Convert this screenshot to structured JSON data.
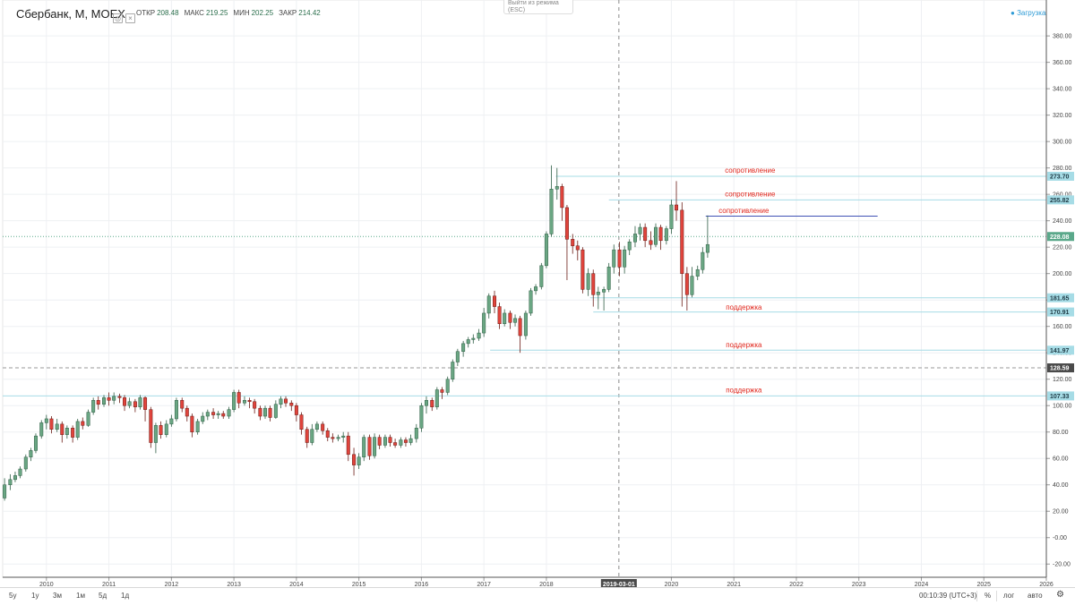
{
  "header": {
    "symbol": "Сбербанк, М, MOEX",
    "ohlc": [
      {
        "key": "ОТКР",
        "value": "208.48"
      },
      {
        "key": "МАКС",
        "value": "219.25"
      },
      {
        "key": "МИН",
        "value": "202.25"
      },
      {
        "key": "ЗАКР",
        "value": "214.42"
      }
    ],
    "esc_hint": "Выйти из режима (ESC)",
    "loading": "Загрузка"
  },
  "chart_data": {
    "type": "candlestick",
    "title": "Сбербанк, М, MOEX",
    "x_axis": {
      "range": [
        2009.3,
        2026.0
      ],
      "ticks": [
        "2010",
        "2011",
        "2012",
        "2013",
        "2014",
        "2015",
        "2016",
        "2017",
        "2018",
        "2019-03-01",
        "2020",
        "2021",
        "2022",
        "2023",
        "2024",
        "2025",
        "2026"
      ],
      "tick_values": [
        2010,
        2011,
        2012,
        2013,
        2014,
        2015,
        2016,
        2017,
        2018,
        2019.16,
        2020,
        2021,
        2022,
        2023,
        2024,
        2025,
        2026
      ],
      "crosshair_label": "2019-03-01",
      "crosshair_value": 2019.16
    },
    "y_axis": {
      "range": [
        -30,
        395
      ],
      "ticks": [
        -20,
        0,
        20,
        40,
        60,
        80,
        100,
        120,
        140,
        160,
        180,
        200,
        220,
        240,
        260,
        280,
        300,
        320,
        340,
        360,
        380
      ],
      "tick_labels": [
        "-20.00",
        "-0.00",
        "20.00",
        "40.00",
        "60.00",
        "80.00",
        "100.00",
        "120.00",
        "140.00",
        "160.00",
        "180.00",
        "200.00",
        "220.00",
        "240.00",
        "260.00",
        "280.00",
        "300.00",
        "320.00",
        "340.00",
        "360.00",
        "380.00"
      ]
    },
    "candles": [
      [
        2009.33,
        30,
        40,
        28,
        45
      ],
      [
        2009.42,
        40,
        44,
        36,
        48
      ],
      [
        2009.5,
        44,
        47,
        42,
        50
      ],
      [
        2009.58,
        47,
        52,
        45,
        54
      ],
      [
        2009.67,
        52,
        61,
        50,
        63
      ],
      [
        2009.75,
        61,
        66,
        58,
        68
      ],
      [
        2009.83,
        66,
        77,
        64,
        79
      ],
      [
        2009.92,
        77,
        87,
        75,
        89
      ],
      [
        2010.0,
        87,
        90,
        82,
        93
      ],
      [
        2010.08,
        90,
        82,
        79,
        92
      ],
      [
        2010.17,
        82,
        86,
        80,
        90
      ],
      [
        2010.25,
        86,
        78,
        72,
        88
      ],
      [
        2010.33,
        78,
        83,
        75,
        85
      ],
      [
        2010.42,
        83,
        76,
        72,
        85
      ],
      [
        2010.5,
        76,
        88,
        74,
        90
      ],
      [
        2010.58,
        88,
        85,
        82,
        91
      ],
      [
        2010.67,
        85,
        95,
        84,
        97
      ],
      [
        2010.75,
        95,
        104,
        93,
        106
      ],
      [
        2010.83,
        104,
        101,
        97,
        107
      ],
      [
        2010.92,
        101,
        106,
        99,
        108
      ],
      [
        2011.0,
        106,
        104,
        100,
        110
      ],
      [
        2011.08,
        104,
        107,
        101,
        110
      ],
      [
        2011.17,
        107,
        106,
        102,
        109
      ],
      [
        2011.25,
        106,
        100,
        96,
        108
      ],
      [
        2011.33,
        100,
        103,
        98,
        106
      ],
      [
        2011.42,
        103,
        99,
        95,
        105
      ],
      [
        2011.5,
        99,
        106,
        97,
        108
      ],
      [
        2011.58,
        106,
        97,
        88,
        107
      ],
      [
        2011.67,
        97,
        72,
        68,
        99
      ],
      [
        2011.75,
        72,
        85,
        64,
        87
      ],
      [
        2011.83,
        85,
        78,
        75,
        88
      ],
      [
        2011.92,
        78,
        86,
        76,
        89
      ],
      [
        2012.0,
        86,
        90,
        84,
        93
      ],
      [
        2012.08,
        90,
        104,
        88,
        106
      ],
      [
        2012.17,
        104,
        98,
        95,
        106
      ],
      [
        2012.25,
        98,
        92,
        88,
        100
      ],
      [
        2012.33,
        92,
        80,
        76,
        94
      ],
      [
        2012.42,
        80,
        88,
        78,
        90
      ],
      [
        2012.5,
        88,
        92,
        86,
        95
      ],
      [
        2012.58,
        92,
        95,
        89,
        97
      ],
      [
        2012.67,
        95,
        93,
        90,
        98
      ],
      [
        2012.75,
        93,
        94,
        90,
        96
      ],
      [
        2012.83,
        94,
        92,
        90,
        96
      ],
      [
        2012.92,
        92,
        97,
        90,
        99
      ],
      [
        2013.0,
        97,
        110,
        95,
        112
      ],
      [
        2013.08,
        110,
        102,
        98,
        112
      ],
      [
        2013.17,
        102,
        104,
        100,
        107
      ],
      [
        2013.25,
        104,
        103,
        98,
        106
      ],
      [
        2013.33,
        103,
        98,
        94,
        105
      ],
      [
        2013.42,
        98,
        92,
        89,
        100
      ],
      [
        2013.5,
        92,
        98,
        90,
        100
      ],
      [
        2013.58,
        98,
        91,
        88,
        100
      ],
      [
        2013.67,
        91,
        101,
        90,
        104
      ],
      [
        2013.75,
        101,
        105,
        98,
        107
      ],
      [
        2013.83,
        105,
        102,
        99,
        107
      ],
      [
        2013.92,
        102,
        100,
        96,
        104
      ],
      [
        2014.0,
        100,
        93,
        88,
        102
      ],
      [
        2014.08,
        93,
        82,
        78,
        95
      ],
      [
        2014.17,
        82,
        72,
        68,
        84
      ],
      [
        2014.25,
        72,
        82,
        70,
        86
      ],
      [
        2014.33,
        82,
        86,
        80,
        88
      ],
      [
        2014.42,
        86,
        81,
        78,
        88
      ],
      [
        2014.5,
        81,
        76,
        73,
        83
      ],
      [
        2014.58,
        76,
        75,
        72,
        79
      ],
      [
        2014.67,
        75,
        76,
        73,
        78
      ],
      [
        2014.75,
        76,
        77,
        72,
        80
      ],
      [
        2014.83,
        77,
        63,
        58,
        80
      ],
      [
        2014.92,
        63,
        55,
        47,
        68
      ],
      [
        2015.0,
        55,
        61,
        52,
        64
      ],
      [
        2015.08,
        61,
        76,
        58,
        78
      ],
      [
        2015.17,
        76,
        62,
        59,
        78
      ],
      [
        2015.25,
        62,
        76,
        60,
        79
      ],
      [
        2015.33,
        76,
        70,
        67,
        78
      ],
      [
        2015.42,
        70,
        76,
        68,
        78
      ],
      [
        2015.5,
        76,
        72,
        69,
        78
      ],
      [
        2015.58,
        72,
        70,
        68,
        75
      ],
      [
        2015.67,
        70,
        74,
        68,
        76
      ],
      [
        2015.75,
        74,
        72,
        69,
        76
      ],
      [
        2015.83,
        72,
        75,
        70,
        78
      ],
      [
        2015.92,
        75,
        83,
        72,
        86
      ],
      [
        2016.0,
        83,
        100,
        80,
        102
      ],
      [
        2016.08,
        100,
        104,
        94,
        107
      ],
      [
        2016.17,
        104,
        99,
        96,
        106
      ],
      [
        2016.25,
        99,
        112,
        97,
        114
      ],
      [
        2016.33,
        112,
        110,
        105,
        114
      ],
      [
        2016.42,
        110,
        120,
        108,
        122
      ],
      [
        2016.5,
        120,
        133,
        118,
        135
      ],
      [
        2016.58,
        133,
        141,
        130,
        143
      ],
      [
        2016.67,
        141,
        147,
        137,
        149
      ],
      [
        2016.75,
        147,
        150,
        144,
        152
      ],
      [
        2016.83,
        150,
        151,
        147,
        154
      ],
      [
        2016.92,
        151,
        155,
        149,
        158
      ],
      [
        2017.0,
        155,
        170,
        152,
        174
      ],
      [
        2017.08,
        170,
        183,
        166,
        185
      ],
      [
        2017.17,
        183,
        175,
        170,
        187
      ],
      [
        2017.25,
        175,
        162,
        158,
        178
      ],
      [
        2017.33,
        162,
        170,
        160,
        173
      ],
      [
        2017.42,
        170,
        163,
        158,
        172
      ],
      [
        2017.5,
        163,
        166,
        160,
        169
      ],
      [
        2017.58,
        166,
        153,
        140,
        168
      ],
      [
        2017.67,
        153,
        170,
        150,
        172
      ],
      [
        2017.75,
        170,
        187,
        168,
        189
      ],
      [
        2017.83,
        187,
        190,
        184,
        192
      ],
      [
        2017.92,
        190,
        206,
        188,
        208
      ],
      [
        2018.0,
        206,
        230,
        204,
        232
      ],
      [
        2018.08,
        230,
        264,
        228,
        282
      ],
      [
        2018.17,
        264,
        266,
        256,
        280
      ],
      [
        2018.25,
        266,
        250,
        240,
        268
      ],
      [
        2018.33,
        250,
        226,
        195,
        252
      ],
      [
        2018.42,
        226,
        221,
        215,
        230
      ],
      [
        2018.5,
        221,
        218,
        210,
        225
      ],
      [
        2018.58,
        218,
        188,
        185,
        220
      ],
      [
        2018.67,
        188,
        200,
        183,
        204
      ],
      [
        2018.75,
        200,
        184,
        175,
        203
      ],
      [
        2018.83,
        184,
        186,
        173,
        190
      ],
      [
        2018.92,
        186,
        188,
        172,
        190
      ],
      [
        2019.0,
        188,
        205,
        186,
        208
      ],
      [
        2019.08,
        205,
        218,
        200,
        222
      ],
      [
        2019.17,
        218,
        205,
        198,
        224
      ],
      [
        2019.25,
        205,
        218,
        200,
        221
      ],
      [
        2019.33,
        218,
        224,
        214,
        226
      ],
      [
        2019.42,
        224,
        230,
        220,
        236
      ],
      [
        2019.5,
        230,
        235,
        225,
        238
      ],
      [
        2019.58,
        235,
        225,
        220,
        238
      ],
      [
        2019.67,
        225,
        222,
        218,
        232
      ],
      [
        2019.75,
        222,
        235,
        220,
        238
      ],
      [
        2019.83,
        235,
        225,
        218,
        237
      ],
      [
        2019.92,
        225,
        234,
        222,
        236
      ],
      [
        2020.0,
        234,
        252,
        230,
        256
      ],
      [
        2020.08,
        252,
        248,
        240,
        270
      ],
      [
        2020.17,
        248,
        200,
        175,
        254
      ],
      [
        2020.25,
        200,
        184,
        172,
        205
      ],
      [
        2020.33,
        184,
        198,
        182,
        205
      ],
      [
        2020.42,
        198,
        203,
        195,
        206
      ],
      [
        2020.5,
        203,
        216,
        200,
        220
      ],
      [
        2020.58,
        216,
        222,
        212,
        244
      ]
    ],
    "horizontal_levels": [
      {
        "value": 273.7,
        "label": "273.70",
        "line_color": "#a6dce6"
      },
      {
        "value": 255.82,
        "label": "255.82",
        "line_color": "#a6dce6"
      },
      {
        "value": 228.08,
        "label": "228.08",
        "line_color": "#5aa88a"
      },
      {
        "value": 181.65,
        "label": "181.65",
        "line_color": "#a6dce6"
      },
      {
        "value": 170.91,
        "label": "170.91",
        "line_color": "#a6dce6"
      },
      {
        "value": 141.97,
        "label": "141.97",
        "line_color": "#a6dce6"
      },
      {
        "value": 128.59,
        "label": "128.59",
        "line_color": "#999999"
      },
      {
        "value": 107.33,
        "label": "107.33",
        "line_color": "#a6dce6"
      }
    ],
    "annotations": [
      {
        "text": "сопротивление",
        "x": 2021.26,
        "y": 276.5
      },
      {
        "text": "сопротивление",
        "x": 2021.26,
        "y": 258.4
      },
      {
        "text": "сопротивление",
        "x": 2021.16,
        "y": 245.8
      },
      {
        "text": "поддержка",
        "x": 2021.16,
        "y": 172.8
      },
      {
        "text": "поддержка",
        "x": 2021.16,
        "y": 144.2
      },
      {
        "text": "поддержка",
        "x": 2021.16,
        "y": 110.0
      }
    ],
    "colors": {
      "up": "#6aa683",
      "down": "#e0443c",
      "up_border": "#2f5e45",
      "down_border": "#6b1c16"
    }
  },
  "footer": {
    "timeframes": [
      "5y",
      "1y",
      "3м",
      "1м",
      "5д",
      "1д"
    ],
    "clock": "00:10:39 (UTC+3)",
    "percent": "%",
    "log": "лог",
    "auto": "авто"
  }
}
